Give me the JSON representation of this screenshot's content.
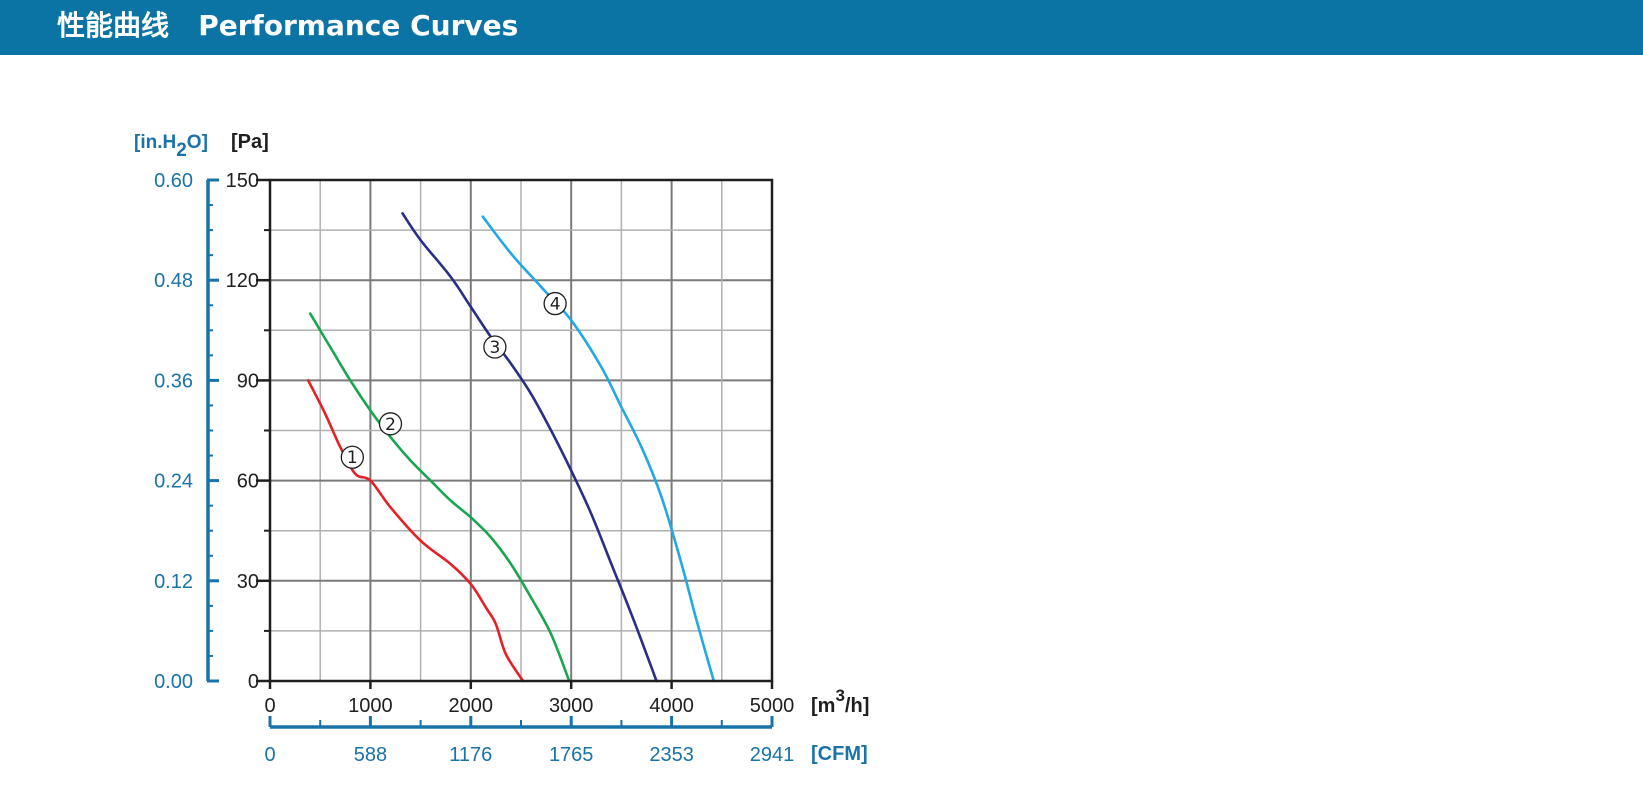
{
  "header": {
    "title": "性能曲线   Performance Curves",
    "bg_color": "#0b74a5"
  },
  "chart_data": {
    "type": "line",
    "xlabel": "[m3/h]",
    "xlabel_parts": {
      "base": "[m",
      "sup": "3",
      "rest": "/h]"
    },
    "ylabel": "[Pa]",
    "secondary_ylabel": "[in.H2O]",
    "secondary_ylabel_parts": {
      "pre": "[in.H",
      "sub": "2",
      "post": "O]"
    },
    "secondary_xlabel": "[CFM]",
    "xlim": [
      0,
      5000
    ],
    "ylim": [
      0,
      150
    ],
    "x_ticks": [
      "0",
      "1000",
      "2000",
      "3000",
      "4000",
      "5000"
    ],
    "y_ticks": [
      "0",
      "30",
      "60",
      "90",
      "120",
      "150"
    ],
    "secondary_y_ticks": [
      "0.00",
      "0.12",
      "0.24",
      "0.36",
      "0.48",
      "0.60"
    ],
    "secondary_x_ticks": [
      "0",
      "588",
      "1176",
      "1765",
      "2353",
      "2941"
    ],
    "grid": true,
    "axis_color": "#1f1f1f",
    "secondary_color": "#1a73a8",
    "grid_color": "#9a9a9a",
    "series": [
      {
        "label": "①",
        "color": "#e32126",
        "points": [
          [
            380,
            90
          ],
          [
            550,
            80
          ],
          [
            700,
            70
          ],
          [
            850,
            62
          ],
          [
            1000,
            60
          ],
          [
            1200,
            52
          ],
          [
            1500,
            42
          ],
          [
            1800,
            35
          ],
          [
            2000,
            29
          ],
          [
            2150,
            22
          ],
          [
            2250,
            17
          ],
          [
            2350,
            8
          ],
          [
            2520,
            0
          ]
        ],
        "label_at": [
          820,
          67
        ]
      },
      {
        "label": "②",
        "color": "#1aa550",
        "points": [
          [
            400,
            110
          ],
          [
            600,
            100
          ],
          [
            800,
            90
          ],
          [
            1000,
            81
          ],
          [
            1200,
            73
          ],
          [
            1400,
            66
          ],
          [
            1600,
            60
          ],
          [
            1800,
            54
          ],
          [
            2000,
            49
          ],
          [
            2200,
            43
          ],
          [
            2400,
            35
          ],
          [
            2600,
            25
          ],
          [
            2800,
            14
          ],
          [
            2980,
            0
          ]
        ],
        "label_at": [
          1200,
          77
        ]
      },
      {
        "label": "③",
        "color": "#2a2e84",
        "points": [
          [
            1320,
            140
          ],
          [
            1500,
            132
          ],
          [
            1800,
            121
          ],
          [
            2000,
            112
          ],
          [
            2200,
            103
          ],
          [
            2400,
            95
          ],
          [
            2600,
            86
          ],
          [
            2800,
            75
          ],
          [
            3000,
            63
          ],
          [
            3200,
            50
          ],
          [
            3400,
            35
          ],
          [
            3600,
            20
          ],
          [
            3850,
            0
          ]
        ],
        "label_at": [
          2240,
          100
        ]
      },
      {
        "label": "④",
        "color": "#23a8e1",
        "points": [
          [
            2120,
            139
          ],
          [
            2400,
            128
          ],
          [
            2700,
            118
          ],
          [
            3000,
            108
          ],
          [
            3300,
            94
          ],
          [
            3500,
            82
          ],
          [
            3700,
            70
          ],
          [
            3900,
            55
          ],
          [
            4100,
            35
          ],
          [
            4250,
            18
          ],
          [
            4420,
            0
          ]
        ],
        "label_at": [
          2840,
          113
        ]
      }
    ]
  }
}
